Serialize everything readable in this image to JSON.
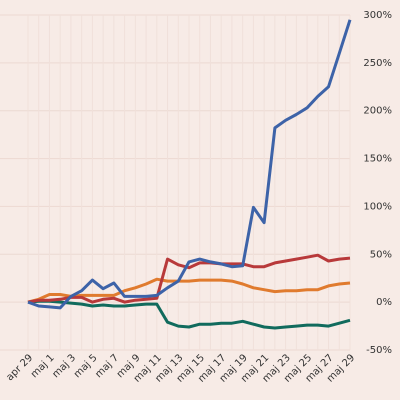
{
  "chart_data": {
    "type": "line",
    "categories": [
      "apr 29",
      null,
      "maj 1",
      null,
      "maj 3",
      null,
      "maj 5",
      null,
      "maj 7",
      null,
      "maj 9",
      null,
      "maj 11",
      null,
      "maj 13",
      null,
      "maj 15",
      null,
      "maj 17",
      null,
      "maj 19",
      null,
      "maj 21",
      null,
      "maj 23",
      null,
      "maj 25",
      null,
      "maj 27",
      null,
      "maj 29"
    ],
    "series": [
      {
        "color": "#3d63a8",
        "values": [
          0,
          -4,
          -5,
          -6,
          6,
          12,
          23,
          14,
          20,
          6,
          6,
          6,
          7,
          15,
          22,
          42,
          45,
          42,
          40,
          37,
          38,
          99,
          83,
          182,
          190,
          196,
          203,
          215,
          225,
          260,
          295
        ]
      },
      {
        "color": "#b8393a",
        "values": [
          0,
          2,
          2,
          3,
          5,
          5,
          0,
          3,
          4,
          0,
          2,
          3,
          4,
          45,
          39,
          36,
          41,
          41,
          40,
          40,
          40,
          37,
          37,
          41,
          43,
          45,
          47,
          49,
          43,
          45,
          46
        ]
      },
      {
        "color": "#e07b2e",
        "values": [
          0,
          3,
          8,
          8,
          6,
          7,
          7,
          7,
          7,
          12,
          15,
          19,
          24,
          22,
          22,
          22,
          23,
          23,
          23,
          22,
          19,
          15,
          13,
          11,
          12,
          12,
          13,
          13,
          17,
          19,
          20
        ]
      },
      {
        "color": "#116b5d",
        "values": [
          0,
          1,
          1,
          0,
          -1,
          -2,
          -4,
          -3,
          -4,
          -4,
          -3,
          -2,
          -2,
          -21,
          -25,
          -26,
          -23,
          -23,
          -22,
          -22,
          -20,
          -23,
          -26,
          -27,
          -26,
          -25,
          -24,
          -24,
          -25,
          -22,
          -19
        ]
      }
    ],
    "ylim": [
      -50,
      300
    ],
    "yticks": [
      {
        "value": -50,
        "label": "-50%"
      },
      {
        "value": 0,
        "label": "0%"
      },
      {
        "value": 50,
        "label": "50%"
      },
      {
        "value": 100,
        "label": "100%"
      },
      {
        "value": 150,
        "label": "150%"
      },
      {
        "value": 200,
        "label": "200%"
      },
      {
        "value": 250,
        "label": "250%"
      },
      {
        "value": 300,
        "label": "300%"
      }
    ],
    "grid": true
  }
}
